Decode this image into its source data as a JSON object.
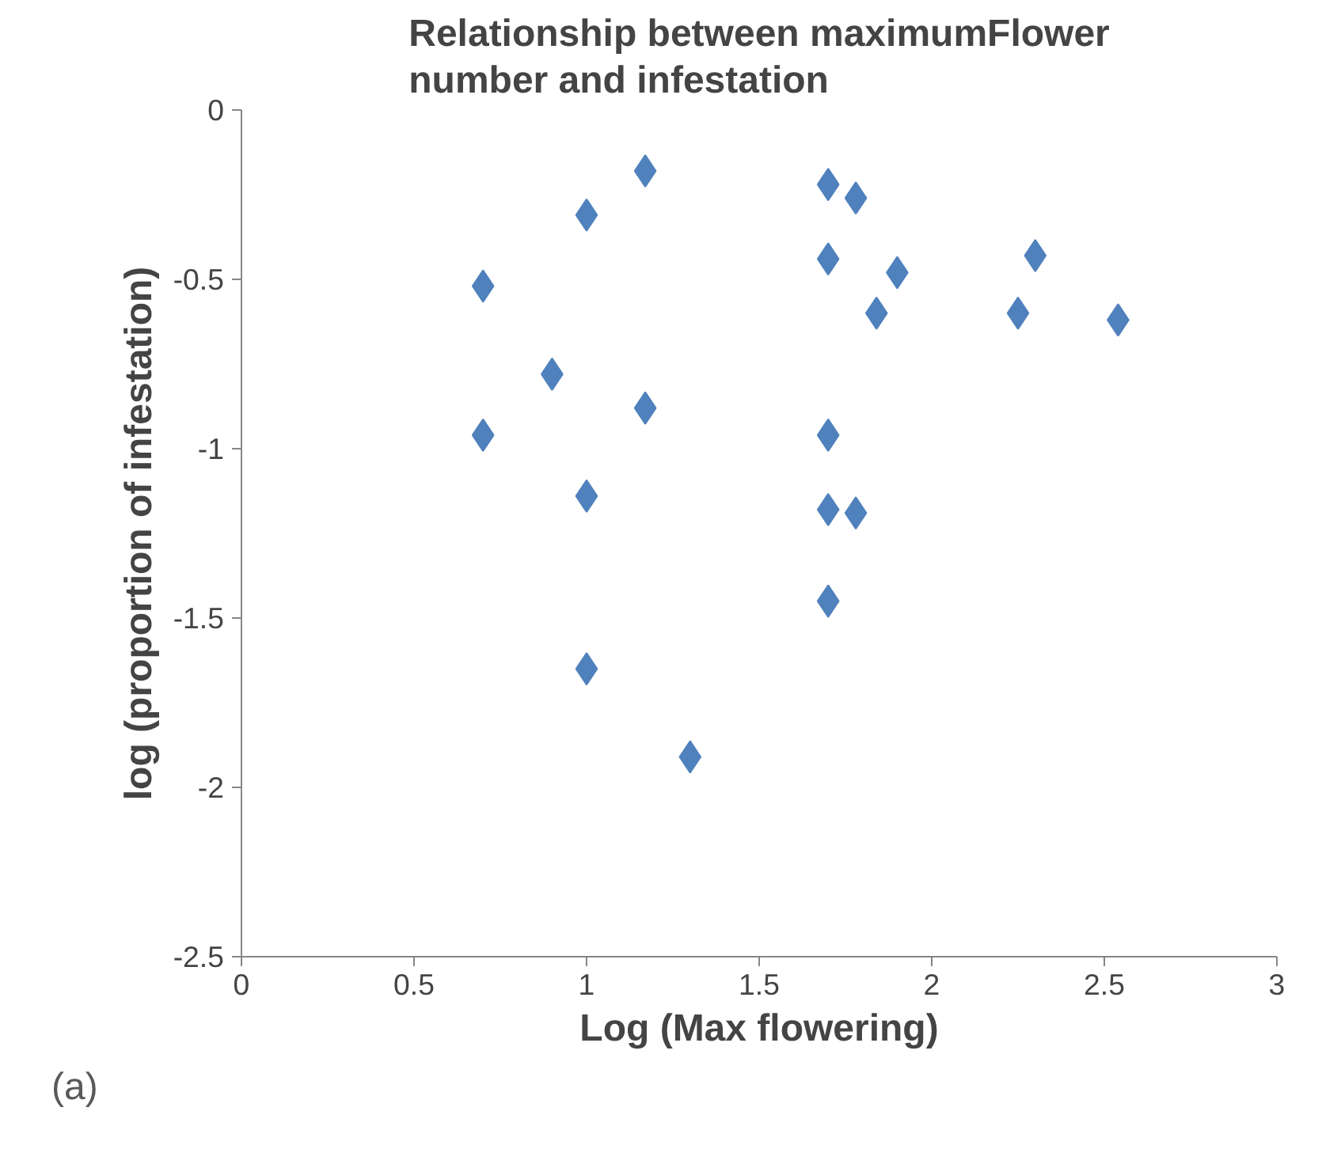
{
  "chart_data": {
    "type": "scatter",
    "title": "Relationship between maximumFlower number and infestation",
    "xlabel": "Log (Max flowering)",
    "ylabel": "log (proportion of infestation)",
    "x": [
      0.7,
      0.7,
      0.9,
      1.0,
      1.0,
      1.0,
      1.17,
      1.17,
      1.3,
      1.7,
      1.78,
      1.7,
      1.9,
      1.84,
      1.7,
      1.7,
      1.78,
      1.7,
      2.25,
      2.3,
      2.54
    ],
    "series": [
      {
        "color": "#4f81bd",
        "values": [
          -0.52,
          -0.96,
          -0.78,
          -0.31,
          -1.14,
          -1.65,
          -0.18,
          -0.88,
          -1.91,
          -0.22,
          -0.26,
          -0.44,
          -0.48,
          -0.6,
          -0.96,
          -1.18,
          -1.19,
          -1.45,
          -0.6,
          -0.43,
          -0.62
        ]
      }
    ],
    "xlim": [
      0,
      3
    ],
    "xticks": [
      0,
      0.5,
      1,
      1.5,
      2,
      2.5,
      3
    ],
    "ylim": [
      -2.5,
      0
    ],
    "yticks": [
      0,
      -0.5,
      -1,
      -1.5,
      -2,
      -2.5
    ],
    "marker": "diamond",
    "grid": false,
    "annotations": [
      "(a)"
    ]
  }
}
